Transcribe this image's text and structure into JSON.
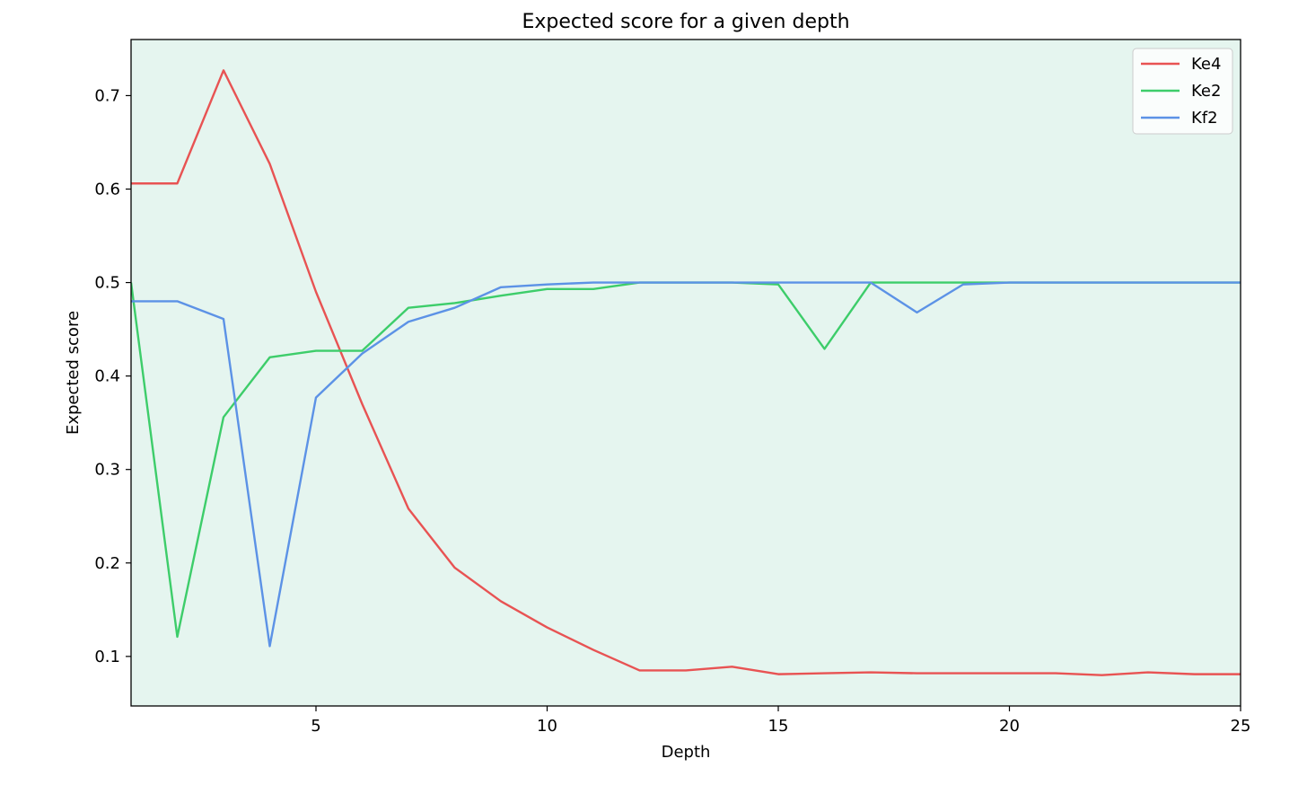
{
  "chart_data": {
    "type": "line",
    "title": "Expected score for a given depth",
    "xlabel": "Depth",
    "ylabel": "Expected score",
    "xlim": [
      1,
      25
    ],
    "ylim": [
      0.047,
      0.76
    ],
    "xticks": [
      5,
      10,
      15,
      20,
      25
    ],
    "yticks": [
      0.1,
      0.2,
      0.3,
      0.4,
      0.5,
      0.6,
      0.7
    ],
    "ytick_labels": [
      "0.1",
      "0.2",
      "0.3",
      "0.4",
      "0.5",
      "0.6",
      "0.7"
    ],
    "xtick_labels": [
      "5",
      "10",
      "15",
      "20",
      "25"
    ],
    "grid": false,
    "legend_position": "top-right",
    "background_color": "#e5f5ef",
    "x": [
      1,
      2,
      3,
      4,
      5,
      6,
      7,
      8,
      9,
      10,
      11,
      12,
      13,
      14,
      15,
      16,
      17,
      18,
      19,
      20,
      21,
      22,
      23,
      24,
      25
    ],
    "series": [
      {
        "name": "Ke4",
        "color": "#e85353",
        "values": [
          0.606,
          0.606,
          0.727,
          0.627,
          0.49,
          0.37,
          0.258,
          0.195,
          0.159,
          0.131,
          0.107,
          0.085,
          0.085,
          0.089,
          0.081,
          0.082,
          0.083,
          0.082,
          0.082,
          0.082,
          0.082,
          0.08,
          0.083,
          0.081,
          0.081
        ]
      },
      {
        "name": "Ke2",
        "color": "#3dcd6a",
        "values": [
          0.5,
          0.121,
          0.356,
          0.42,
          0.427,
          0.427,
          0.473,
          0.478,
          0.486,
          0.493,
          0.493,
          0.5,
          0.5,
          0.5,
          0.498,
          0.429,
          0.5,
          0.5,
          0.5,
          0.5,
          0.5,
          0.5,
          0.5,
          0.5,
          0.5
        ]
      },
      {
        "name": "Kf2",
        "color": "#5c92e6",
        "values": [
          0.48,
          0.48,
          0.461,
          0.111,
          0.377,
          0.424,
          0.458,
          0.473,
          0.495,
          0.498,
          0.5,
          0.5,
          0.5,
          0.5,
          0.5,
          0.5,
          0.5,
          0.468,
          0.498,
          0.5,
          0.5,
          0.5,
          0.5,
          0.5,
          0.5
        ]
      }
    ]
  }
}
